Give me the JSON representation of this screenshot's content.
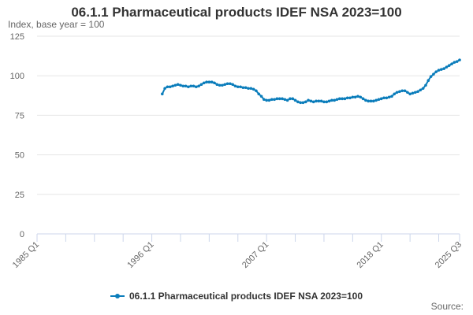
{
  "chart_data": {
    "type": "line",
    "title": "06.1.1 Pharmaceutical products IDEF NSA 2023=100",
    "subtitle": "Index, base year = 100",
    "ylabel": "",
    "xlabel": "",
    "ylim": [
      0,
      125
    ],
    "yticks": [
      0,
      25,
      50,
      75,
      100,
      125
    ],
    "xlim": [
      1985.0,
      2025.5
    ],
    "x_tick_labels": [
      {
        "x": 1985.0,
        "label": "1985 Q1"
      },
      {
        "x": 1996.0,
        "label": "1996 Q1"
      },
      {
        "x": 2007.0,
        "label": "2007 Q1"
      },
      {
        "x": 2018.0,
        "label": "2018 Q1"
      },
      {
        "x": 2025.5,
        "label": "2025 Q3"
      }
    ],
    "grid": true,
    "legend_position": "bottom",
    "series": [
      {
        "name": "06.1.1 Pharmaceutical products IDEF NSA 2023=100",
        "color": "#0b7dbb",
        "x": [
          1997.0,
          1997.25,
          1997.5,
          1997.75,
          1998.0,
          1998.25,
          1998.5,
          1998.75,
          1999.0,
          1999.25,
          1999.5,
          1999.75,
          2000.0,
          2000.25,
          2000.5,
          2000.75,
          2001.0,
          2001.25,
          2001.5,
          2001.75,
          2002.0,
          2002.25,
          2002.5,
          2002.75,
          2003.0,
          2003.25,
          2003.5,
          2003.75,
          2004.0,
          2004.25,
          2004.5,
          2004.75,
          2005.0,
          2005.25,
          2005.5,
          2005.75,
          2006.0,
          2006.25,
          2006.5,
          2006.75,
          2007.0,
          2007.25,
          2007.5,
          2007.75,
          2008.0,
          2008.25,
          2008.5,
          2008.75,
          2009.0,
          2009.25,
          2009.5,
          2009.75,
          2010.0,
          2010.25,
          2010.5,
          2010.75,
          2011.0,
          2011.25,
          2011.5,
          2011.75,
          2012.0,
          2012.25,
          2012.5,
          2012.75,
          2013.0,
          2013.25,
          2013.5,
          2013.75,
          2014.0,
          2014.25,
          2014.5,
          2014.75,
          2015.0,
          2015.25,
          2015.5,
          2015.75,
          2016.0,
          2016.25,
          2016.5,
          2016.75,
          2017.0,
          2017.25,
          2017.5,
          2017.75,
          2018.0,
          2018.25,
          2018.5,
          2018.75,
          2019.0,
          2019.25,
          2019.5,
          2019.75,
          2020.0,
          2020.25,
          2020.5,
          2020.75,
          2021.0,
          2021.25,
          2021.5,
          2021.75,
          2022.0,
          2022.25,
          2022.5,
          2022.75,
          2023.0,
          2023.25,
          2023.5,
          2023.75,
          2024.0,
          2024.25,
          2024.5,
          2024.75,
          2025.0,
          2025.25,
          2025.5
        ],
        "values": [
          88.5,
          92,
          93,
          93,
          93.5,
          94,
          94.5,
          94,
          93.5,
          93.5,
          93,
          93.5,
          93.5,
          93,
          93.5,
          94.5,
          95.5,
          96,
          96,
          96,
          95.5,
          94.5,
          94,
          94,
          94.5,
          95,
          95,
          94.5,
          93.5,
          93,
          93,
          92.5,
          92.5,
          92,
          92,
          91.5,
          90.5,
          88.5,
          87,
          85,
          84.5,
          84.5,
          85,
          85,
          85.5,
          85.5,
          85.5,
          85,
          84.5,
          85.5,
          85.5,
          84.5,
          83.5,
          83,
          83,
          83.5,
          84.5,
          84,
          83.5,
          84,
          84,
          84,
          83.5,
          83.5,
          84,
          84.5,
          84.5,
          85,
          85.5,
          85.5,
          85.5,
          86,
          86,
          86.5,
          86.5,
          87,
          86.5,
          85.5,
          84.5,
          84,
          84,
          84,
          84.5,
          85,
          85.5,
          86,
          86,
          86.5,
          87,
          88.5,
          89.5,
          90,
          90.5,
          90.5,
          89.5,
          88.5,
          89,
          89.5,
          90,
          91,
          92,
          94,
          97,
          99.5,
          101,
          102.5,
          103.5,
          104,
          104.5,
          105.5,
          106.5,
          107.5,
          108.5,
          109,
          110
        ]
      }
    ]
  },
  "credits": {
    "label": "Source:"
  }
}
